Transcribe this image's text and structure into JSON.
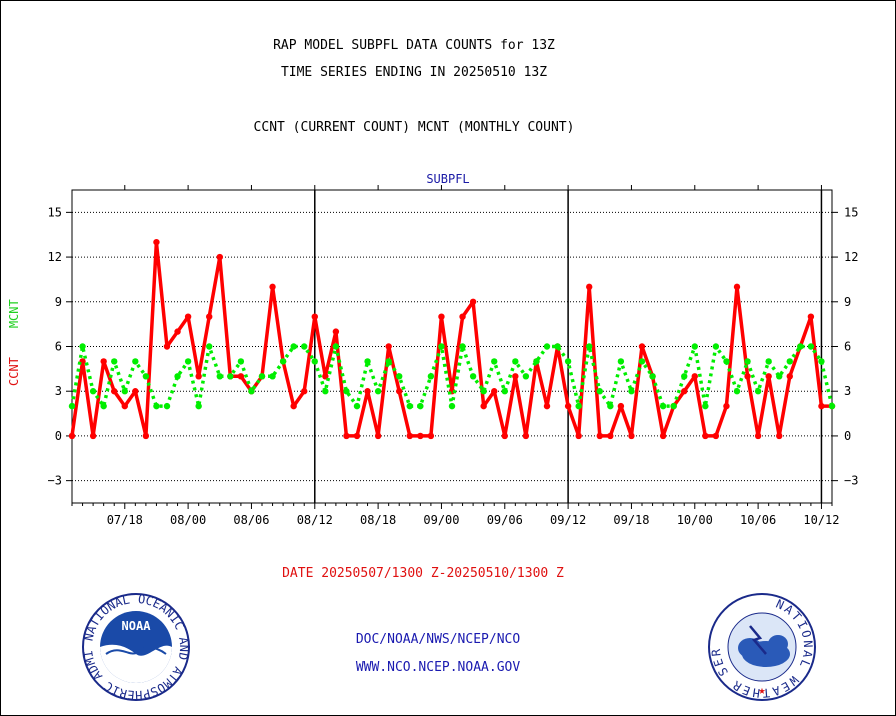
{
  "header": {
    "title_line1": "RAP MODEL SUBPFL DATA COUNTS for 13Z",
    "title_line2": "TIME SERIES ENDING IN 20250510 13Z",
    "subtitle": "CCNT (CURRENT COUNT) MCNT (MONTHLY COUNT)",
    "panel_label": "SUBPFL"
  },
  "axis": {
    "ylabel_ccnt": "CCNT",
    "ylabel_mcnt": "MCNT"
  },
  "footer": {
    "date_range": "DATE 20250507/1300 Z-20250510/1300 Z",
    "org_line1": "DOC/NOAA/NWS/NCEP/NCO",
    "org_line2": "WWW.NCO.NCEP.NOAA.GOV"
  },
  "colors": {
    "ccnt": "#ff0000",
    "mcnt": "#00ee00",
    "title_text": "#000000",
    "panel_text": "#1a1aa6",
    "date_text": "#e01010",
    "org_text": "#1a1ab0"
  },
  "logos": {
    "noaa_text": "NOAA",
    "noaa_ring": "NATIONAL OCEANIC AND ATMOSPHERIC ADMINISTRATION · U.S. DEPARTMENT OF COMMERCE",
    "nws_ring": "NATIONAL WEATHER SERVICE"
  },
  "chart_data": {
    "type": "line",
    "title": "RAP MODEL SUBPFL DATA COUNTS for 13Z",
    "x_tick_labels": [
      "07/18",
      "08/00",
      "08/06",
      "08/12",
      "08/18",
      "09/00",
      "09/06",
      "09/12",
      "09/18",
      "10/00",
      "10/06",
      "10/12"
    ],
    "x_tick_steps": [
      5,
      11,
      17,
      23,
      29,
      35,
      41,
      47,
      53,
      59,
      65,
      71
    ],
    "divider_steps": [
      23,
      47,
      71
    ],
    "x_start_label": "07/13",
    "x_step_hours": 1,
    "y_ticks": [
      -3,
      0,
      3,
      6,
      9,
      12,
      15
    ],
    "ylim": [
      -4.5,
      16.5
    ],
    "grid": true,
    "series": [
      {
        "name": "CCNT",
        "color": "#ff0000",
        "values": [
          0,
          5,
          0,
          5,
          3,
          2,
          3,
          0,
          13,
          6,
          7,
          8,
          4,
          8,
          12,
          4,
          4,
          3,
          4,
          10,
          5,
          2,
          3,
          8,
          4,
          7,
          0,
          0,
          3,
          0,
          6,
          3,
          0,
          0,
          0,
          8,
          3,
          8,
          9,
          2,
          3,
          0,
          4,
          0,
          5,
          2,
          6,
          2,
          0,
          10,
          0,
          0,
          2,
          0,
          6,
          4,
          0,
          2,
          3,
          4,
          0,
          0,
          2,
          10,
          4,
          0,
          4,
          0,
          4,
          6,
          8,
          2,
          2
        ]
      },
      {
        "name": "MCNT",
        "color": "#00ee00",
        "values": [
          2,
          6,
          3,
          2,
          5,
          3,
          5,
          4,
          2,
          2,
          4,
          5,
          2,
          6,
          4,
          4,
          5,
          3,
          4,
          4,
          5,
          6,
          6,
          5,
          3,
          6,
          3,
          2,
          5,
          3,
          5,
          4,
          2,
          2,
          4,
          6,
          2,
          6,
          4,
          3,
          5,
          3,
          5,
          4,
          5,
          6,
          6,
          5,
          2,
          6,
          3,
          2,
          5,
          3,
          5,
          4,
          2,
          2,
          4,
          6,
          2,
          6,
          5,
          3,
          5,
          3,
          5,
          4,
          5,
          6,
          6,
          5,
          2
        ]
      }
    ]
  }
}
